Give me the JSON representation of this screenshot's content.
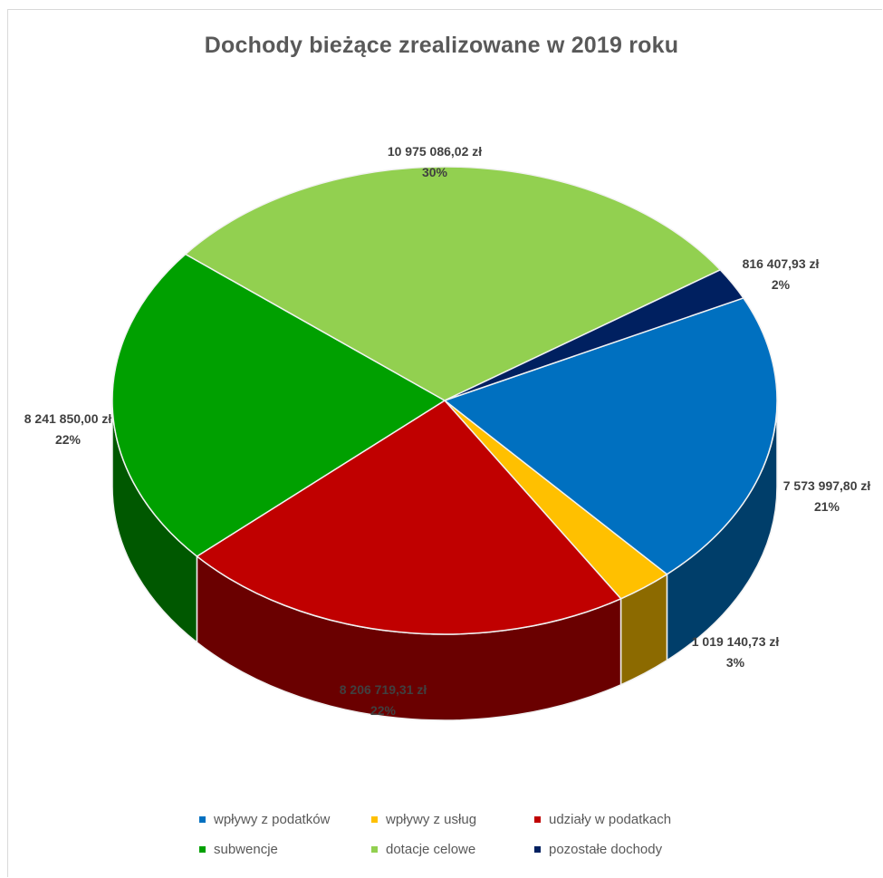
{
  "chart_data": {
    "type": "pie",
    "title": "Dochody bieżące zrealizowane w 2019 roku",
    "slices": [
      {
        "name": "wpływy z podatków",
        "value": 7573997.8,
        "value_label": "7 573 997,80 zł",
        "percent_label": "21%",
        "color": "#0070c0"
      },
      {
        "name": "wpływy z usług",
        "value": 1019140.73,
        "value_label": "1 019 140,73 zł",
        "percent_label": "3%",
        "color": "#ffc000"
      },
      {
        "name": "udziały w podatkach",
        "value": 8206719.31,
        "value_label": "8 206 719,31 zł",
        "percent_label": "22%",
        "color": "#c00000"
      },
      {
        "name": "subwencje",
        "value": 8241850.0,
        "value_label": "8 241 850,00 zł",
        "percent_label": "22%",
        "color": "#00a000"
      },
      {
        "name": "dotacje celowe",
        "value": 10975086.02,
        "value_label": "10 975 086,02 zł",
        "percent_label": "30%",
        "color": "#92d050"
      },
      {
        "name": "pozostałe dochody",
        "value": 816407.93,
        "value_label": "816 407,93 zł",
        "percent_label": "2%",
        "color": "#002060"
      }
    ],
    "legend_position": "bottom",
    "style": "3d"
  }
}
